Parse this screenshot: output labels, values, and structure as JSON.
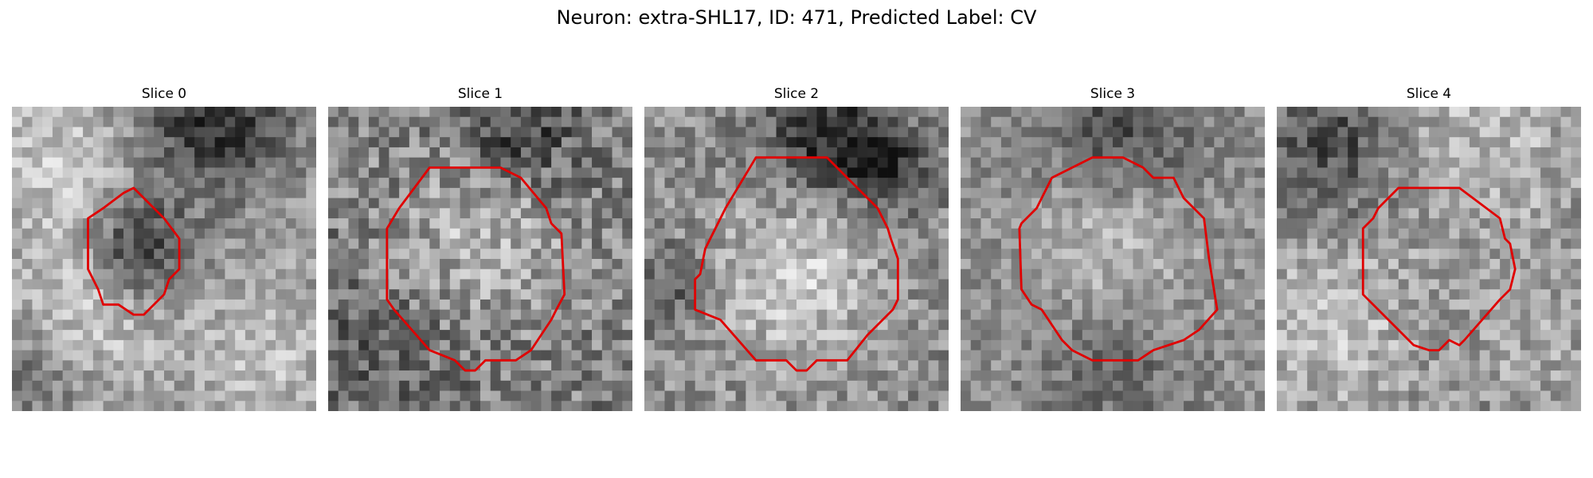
{
  "figure": {
    "title": "Neuron: extra-SHL17, ID: 471, Predicted Label: CV",
    "outline_color": "#e00000",
    "colormap": "gray",
    "panels": [
      {
        "title": "Slice 0",
        "pattern": "slice0"
      },
      {
        "title": "Slice 1",
        "pattern": "slice1"
      },
      {
        "title": "Slice 2",
        "pattern": "slice2"
      },
      {
        "title": "Slice 3",
        "pattern": "slice3"
      },
      {
        "title": "Slice 4",
        "pattern": "slice4"
      }
    ]
  }
}
